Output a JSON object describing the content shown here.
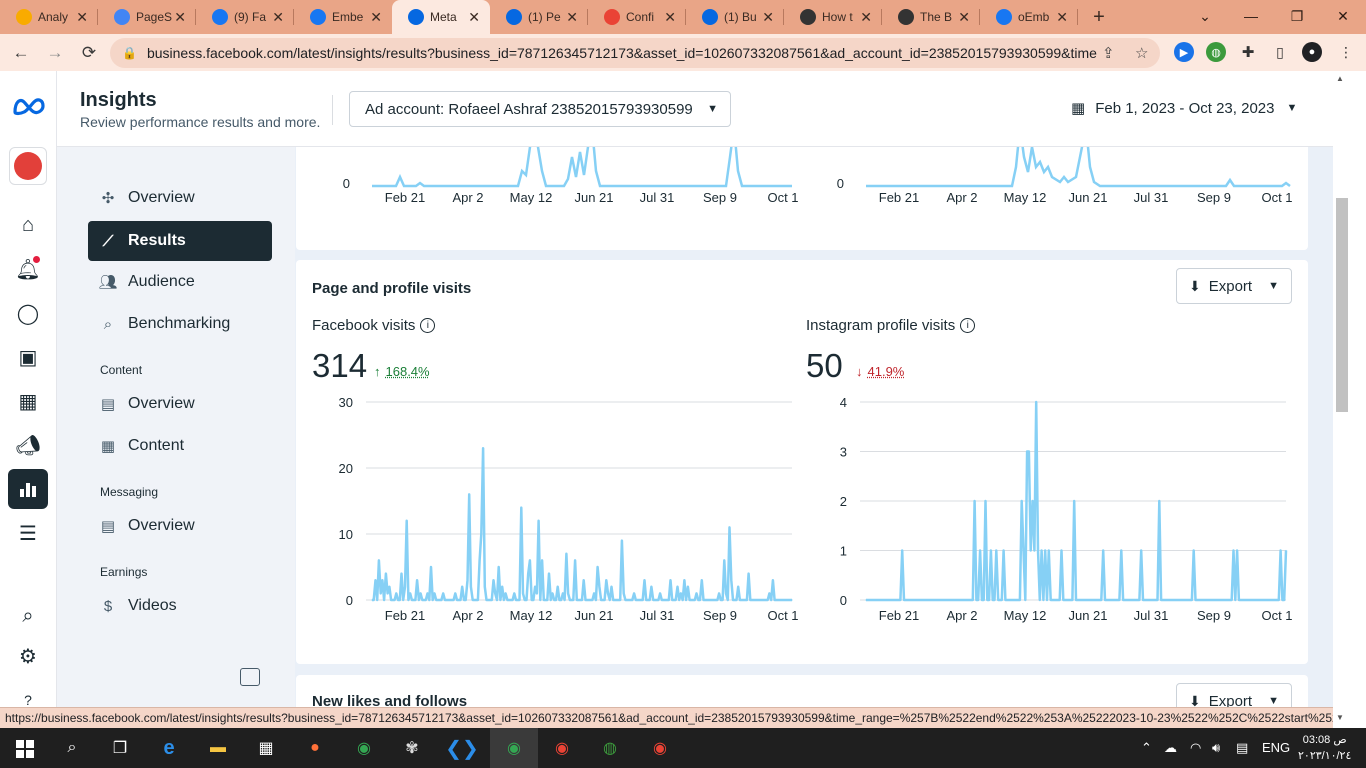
{
  "browser": {
    "tabs": [
      {
        "label": "Analy",
        "icon": "analytics-icon",
        "color": "#f9ab00"
      },
      {
        "label": "PageS",
        "icon": "pagespeed-icon",
        "color": "#4285f4"
      },
      {
        "label": "(9) Fa",
        "icon": "facebook-icon",
        "color": "#1877f2"
      },
      {
        "label": "Embe",
        "icon": "facebook-icon",
        "color": "#1877f2"
      },
      {
        "label": "Meta",
        "icon": "meta-icon",
        "color": "#0668e1"
      },
      {
        "label": "(1) Pe",
        "icon": "meta-icon",
        "color": "#0668e1"
      },
      {
        "label": "Confi",
        "icon": "gmail-icon",
        "color": "#ea4335"
      },
      {
        "label": "(1) Bu",
        "icon": "meta-icon",
        "color": "#0668e1"
      },
      {
        "label": "How t",
        "icon": "bolt-icon",
        "color": "#333333"
      },
      {
        "label": "The B",
        "icon": "bolt-icon",
        "color": "#333333"
      },
      {
        "label": "oEmb",
        "icon": "facebook-icon",
        "color": "#1877f2"
      }
    ],
    "url": "business.facebook.com/latest/insights/results?business_id=787126345712173&asset_id=102607332087561&ad_account_id=23852015793930599&time...",
    "status_url": "https://business.facebook.com/latest/insights/results?business_id=787126345712173&asset_id=102607332087561&ad_account_id=23852015793930599&time_range=%257B%2522end%2522%253A%25222023-10-23%2522%252C%2522start%2522..."
  },
  "header": {
    "title": "Insights",
    "subtitle": "Review performance results and more.",
    "ad_account": "Ad account: Rofaeel Ashraf 23852015793930599",
    "date_range": "Feb 1, 2023 - Oct 23, 2023"
  },
  "sidenav": {
    "items": [
      {
        "label": "Overview",
        "icon": "network-icon"
      },
      {
        "label": "Results",
        "icon": "trend-icon"
      },
      {
        "label": "Audience",
        "icon": "people-icon"
      },
      {
        "label": "Benchmarking",
        "icon": "benchmark-icon"
      }
    ],
    "content_section": "Content",
    "content_items": [
      {
        "label": "Overview",
        "icon": "content-overview-icon"
      },
      {
        "label": "Content",
        "icon": "grid-icon"
      }
    ],
    "messaging_section": "Messaging",
    "messaging_items": [
      {
        "label": "Overview",
        "icon": "messaging-overview-icon"
      }
    ],
    "earnings_section": "Earnings",
    "earnings_items": [
      {
        "label": "Videos",
        "icon": "dollar-icon"
      }
    ]
  },
  "top_card": {
    "x_ticks": [
      "Feb 21",
      "Apr 2",
      "May 12",
      "Jun 21",
      "Jul 31",
      "Sep 9",
      "Oct 1"
    ],
    "y_zero": "0"
  },
  "visits_card": {
    "title": "Page and profile visits",
    "export_label": "Export",
    "facebook": {
      "label": "Facebook visits",
      "value": "314",
      "delta": "168.4%",
      "delta_dir": "up"
    },
    "instagram": {
      "label": "Instagram profile visits",
      "value": "50",
      "delta": "41.9%",
      "delta_dir": "down"
    }
  },
  "likes_card": {
    "title": "New likes and follows",
    "export_label": "Export"
  },
  "chart_data": [
    {
      "type": "line",
      "title": "Facebook visits",
      "x_ticks": [
        "Feb 21",
        "Apr 2",
        "May 12",
        "Jun 21",
        "Jul 31",
        "Sep 9",
        "Oct 1"
      ],
      "y_ticks": [
        0,
        10,
        20,
        30
      ],
      "ylim": [
        0,
        30
      ],
      "color": "#86d0f5",
      "values": [
        0,
        0,
        3,
        0,
        6,
        1,
        3,
        0,
        4,
        1,
        2,
        0,
        0,
        0,
        1,
        0,
        0,
        4,
        0,
        2,
        12,
        0,
        1,
        0,
        0,
        0,
        3,
        0,
        1,
        0,
        0,
        0,
        1,
        0,
        5,
        0,
        1,
        0,
        0,
        0,
        0,
        1,
        0,
        0,
        0,
        0,
        0,
        0,
        1,
        0,
        0,
        0,
        2,
        0,
        0,
        3,
        16,
        2,
        0,
        0,
        0,
        0,
        6,
        10,
        23,
        2,
        0,
        0,
        0,
        0,
        3,
        1,
        0,
        5,
        0,
        2,
        0,
        1,
        0,
        0,
        0,
        0,
        1,
        0,
        0,
        0,
        14,
        1,
        0,
        0,
        4,
        6,
        0,
        0,
        2,
        1,
        12,
        0,
        6,
        0,
        0,
        0,
        4,
        0,
        1,
        0,
        0,
        2,
        0,
        0,
        1,
        0,
        7,
        1,
        0,
        0,
        0,
        6,
        0,
        0,
        0,
        0,
        3,
        0,
        0,
        0,
        0,
        0,
        1,
        0,
        5,
        2,
        0,
        0,
        0,
        3,
        1,
        0,
        2,
        0,
        0,
        0,
        0,
        0,
        9,
        1,
        0,
        0,
        0,
        0,
        0,
        1,
        0,
        0,
        0,
        0,
        0,
        3,
        0,
        0,
        0,
        2,
        0,
        0,
        0,
        0,
        1,
        0,
        0,
        0,
        0,
        0,
        3,
        0,
        0,
        0,
        2,
        0,
        1,
        0,
        3,
        0,
        2,
        0,
        0,
        0,
        0,
        1,
        0,
        0,
        3,
        0,
        0,
        0,
        0,
        0,
        0,
        0,
        0,
        0,
        1,
        0,
        0,
        6,
        1,
        0,
        11,
        3,
        0,
        0,
        0,
        2,
        0,
        0,
        0,
        0,
        0,
        4,
        0,
        0,
        0,
        0,
        0,
        0,
        0,
        0,
        0,
        0,
        0,
        1,
        0,
        3,
        0,
        0,
        0,
        0,
        0,
        0,
        0,
        0,
        0,
        0,
        0
      ]
    },
    {
      "type": "line",
      "title": "Instagram profile visits",
      "x_ticks": [
        "Feb 21",
        "Apr 2",
        "May 12",
        "Jun 21",
        "Jul 31",
        "Sep 9",
        "Oct 1"
      ],
      "y_ticks": [
        0,
        1,
        2,
        3,
        4
      ],
      "ylim": [
        0,
        4
      ],
      "color": "#86d0f5",
      "values": [
        0,
        0,
        0,
        0,
        0,
        0,
        0,
        0,
        0,
        0,
        0,
        0,
        0,
        0,
        0,
        0,
        0,
        0,
        0,
        0,
        1,
        0,
        0,
        0,
        0,
        0,
        0,
        0,
        0,
        0,
        0,
        0,
        0,
        0,
        0,
        0,
        0,
        0,
        0,
        0,
        0,
        0,
        0,
        0,
        0,
        0,
        0,
        0,
        0,
        0,
        0,
        0,
        0,
        0,
        0,
        0,
        0,
        0,
        0,
        0,
        2,
        0,
        0,
        1,
        0,
        0,
        2,
        0,
        0,
        1,
        0,
        0,
        1,
        0,
        0,
        0,
        1,
        0,
        0,
        0,
        0,
        0,
        0,
        0,
        0,
        0,
        2,
        1,
        0,
        3,
        3,
        1,
        2,
        1,
        4,
        1,
        0,
        1,
        0,
        1,
        0,
        1,
        0,
        0,
        0,
        0,
        0,
        0,
        1,
        0,
        0,
        0,
        0,
        0,
        0,
        2,
        0,
        0,
        0,
        0,
        0,
        0,
        0,
        0,
        0,
        0,
        0,
        0,
        0,
        0,
        0,
        1,
        0,
        0,
        0,
        0,
        0,
        0,
        0,
        0,
        0,
        1,
        0,
        0,
        0,
        0,
        0,
        0,
        0,
        0,
        0,
        0,
        1,
        0,
        0,
        0,
        0,
        0,
        0,
        0,
        0,
        0,
        2,
        0,
        0,
        0,
        0,
        0,
        0,
        0,
        0,
        0,
        0,
        0,
        0,
        0,
        0,
        0,
        0,
        0,
        0,
        1,
        0,
        0,
        0,
        0,
        0,
        0,
        0,
        0,
        0,
        0,
        0,
        0,
        0,
        0,
        0,
        0,
        0,
        0,
        0,
        0,
        0,
        1,
        0,
        1,
        0,
        0,
        0,
        0,
        0,
        0,
        0,
        0,
        0,
        0,
        0,
        0,
        0,
        0,
        0,
        0,
        0,
        0,
        0,
        0,
        0,
        0,
        0,
        1,
        0,
        0,
        1
      ]
    }
  ],
  "taskbar": {
    "language": "ENG",
    "time": "03:08 ص",
    "date": "٢٠٢٣/١٠/٢٤"
  }
}
